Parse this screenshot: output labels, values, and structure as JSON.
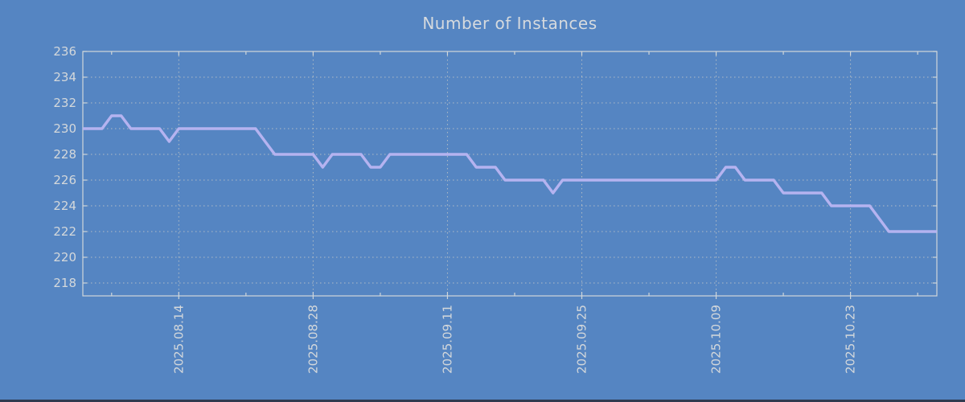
{
  "title": "Number of Instances",
  "colors": {
    "background": "#5585c2",
    "line": "#b5b3f0",
    "grid": "#bcc3c6",
    "axis": "#d0d6da",
    "text": "#d4d8db",
    "bottom_bar": "#2f3a50"
  },
  "chart_data": {
    "type": "line",
    "title": "Number of Instances",
    "xlabel": "",
    "ylabel": "",
    "ylim": [
      217,
      236
    ],
    "yticks": [
      218,
      220,
      222,
      224,
      226,
      228,
      230,
      232,
      234,
      236
    ],
    "grid": true,
    "legend": false,
    "xtick_labels": [
      "2025.08.14",
      "2025.08.28",
      "2025.09.11",
      "2025.09.25",
      "2025.10.09",
      "2025.10.23"
    ],
    "xtick_day_indices": [
      10,
      24,
      38,
      52,
      66,
      80
    ],
    "minor_xtick_day_indices": [
      3,
      17,
      31,
      45,
      59,
      73,
      87
    ],
    "x": [
      "2025.08.04",
      "2025.08.05",
      "2025.08.06",
      "2025.08.07",
      "2025.08.08",
      "2025.08.09",
      "2025.08.10",
      "2025.08.11",
      "2025.08.12",
      "2025.08.13",
      "2025.08.14",
      "2025.08.15",
      "2025.08.16",
      "2025.08.17",
      "2025.08.18",
      "2025.08.19",
      "2025.08.20",
      "2025.08.21",
      "2025.08.22",
      "2025.08.23",
      "2025.08.24",
      "2025.08.25",
      "2025.08.26",
      "2025.08.27",
      "2025.08.28",
      "2025.08.29",
      "2025.08.30",
      "2025.08.31",
      "2025.09.01",
      "2025.09.02",
      "2025.09.03",
      "2025.09.04",
      "2025.09.05",
      "2025.09.06",
      "2025.09.07",
      "2025.09.08",
      "2025.09.09",
      "2025.09.10",
      "2025.09.11",
      "2025.09.12",
      "2025.09.13",
      "2025.09.14",
      "2025.09.15",
      "2025.09.16",
      "2025.09.17",
      "2025.09.18",
      "2025.09.19",
      "2025.09.20",
      "2025.09.21",
      "2025.09.22",
      "2025.09.23",
      "2025.09.24",
      "2025.09.25",
      "2025.09.26",
      "2025.09.27",
      "2025.09.28",
      "2025.09.29",
      "2025.09.30",
      "2025.10.01",
      "2025.10.02",
      "2025.10.03",
      "2025.10.04",
      "2025.10.05",
      "2025.10.06",
      "2025.10.07",
      "2025.10.08",
      "2025.10.09",
      "2025.10.10",
      "2025.10.11",
      "2025.10.12",
      "2025.10.13",
      "2025.10.14",
      "2025.10.15",
      "2025.10.16",
      "2025.10.17",
      "2025.10.18",
      "2025.10.19",
      "2025.10.20",
      "2025.10.21",
      "2025.10.22",
      "2025.10.23",
      "2025.10.24",
      "2025.10.25",
      "2025.10.26",
      "2025.10.27",
      "2025.10.28",
      "2025.10.29",
      "2025.10.30",
      "2025.10.31",
      "2025.11.01"
    ],
    "values": [
      230,
      230,
      230,
      231,
      231,
      230,
      230,
      230,
      230,
      229,
      230,
      230,
      230,
      230,
      230,
      230,
      230,
      230,
      230,
      229,
      228,
      228,
      228,
      228,
      228,
      227,
      228,
      228,
      228,
      228,
      227,
      227,
      228,
      228,
      228,
      228,
      228,
      228,
      228,
      228,
      228,
      227,
      227,
      227,
      226,
      226,
      226,
      226,
      226,
      225,
      226,
      226,
      226,
      226,
      226,
      226,
      226,
      226,
      226,
      226,
      226,
      226,
      226,
      226,
      226,
      226,
      226,
      227,
      227,
      226,
      226,
      226,
      226,
      225,
      225,
      225,
      225,
      225,
      224,
      224,
      224,
      224,
      224,
      223,
      222,
      222,
      222,
      222,
      222,
      222
    ]
  }
}
